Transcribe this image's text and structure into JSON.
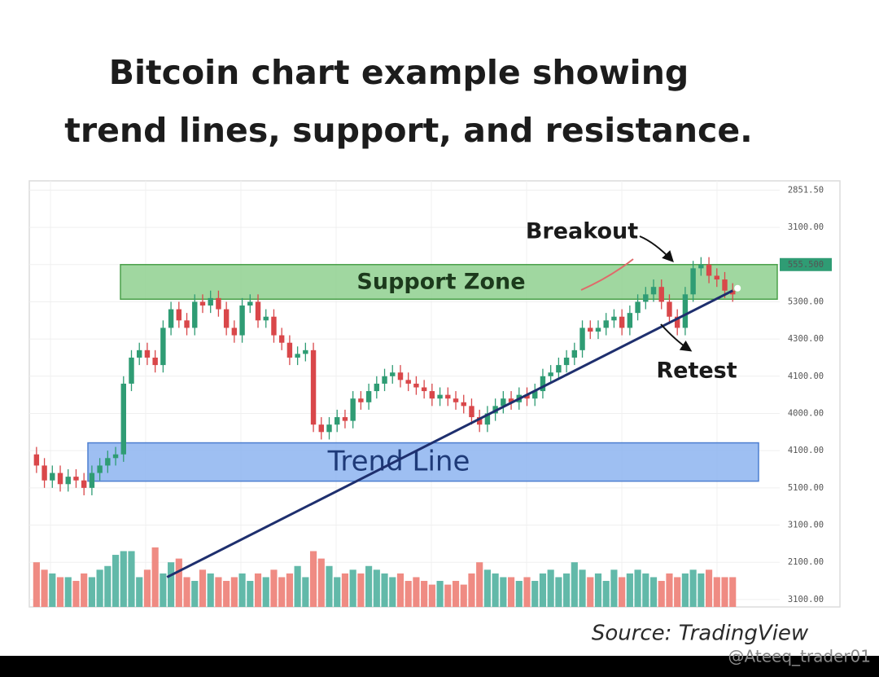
{
  "chart_data": {
    "type": "candlestick",
    "title": [
      "Bitcoin chart example showing",
      "trend lines, support, and resistance."
    ],
    "source": "Source: TradingView",
    "ylim": [
      -0.2,
      11.25
    ],
    "yticks": [
      {
        "value": 11,
        "label": "2851.50"
      },
      {
        "value": 10,
        "label": "3100.00"
      },
      {
        "value": 9,
        "label": "555.500"
      },
      {
        "value": 8,
        "label": "5300.00"
      },
      {
        "value": 7,
        "label": "4300.00"
      },
      {
        "value": 6,
        "label": "4100.00"
      },
      {
        "value": 5,
        "label": "4000.00"
      },
      {
        "value": 4,
        "label": "4100.00"
      },
      {
        "value": 3,
        "label": "5100.00"
      },
      {
        "value": 2,
        "label": "3100.00"
      },
      {
        "value": 1,
        "label": "2100.00"
      },
      {
        "value": 0,
        "label": "3100.00"
      }
    ],
    "highlight_tick": 2,
    "grid": true,
    "up_color": "#2f9c74",
    "down_color": "#d9474a",
    "volume_up_color": "#62b9a9",
    "volume_down_color": "#ef8b83",
    "open": [
      3.9,
      3.6,
      3.2,
      3.4,
      3.1,
      3.3,
      3.2,
      3.0,
      3.4,
      3.6,
      3.8,
      3.9,
      5.8,
      6.5,
      6.7,
      6.5,
      6.3,
      7.3,
      7.8,
      7.5,
      7.3,
      8.0,
      7.9,
      8.1,
      7.8,
      7.3,
      7.1,
      7.9,
      8.0,
      7.5,
      7.6,
      7.1,
      6.9,
      6.5,
      6.6,
      6.7,
      4.7,
      4.5,
      4.7,
      4.9,
      4.8,
      5.4,
      5.3,
      5.6,
      5.8,
      6.0,
      6.1,
      5.9,
      5.8,
      5.7,
      5.6,
      5.4,
      5.5,
      5.4,
      5.3,
      5.2,
      4.9,
      4.7,
      5.0,
      5.2,
      5.4,
      5.3,
      5.5,
      5.4,
      5.6,
      6.0,
      6.1,
      6.3,
      6.5,
      6.7,
      7.3,
      7.2,
      7.3,
      7.5,
      7.6,
      7.3,
      7.7,
      8.0,
      8.2,
      8.4,
      8.0,
      7.6,
      7.3,
      8.2,
      8.9,
      9.0,
      8.7,
      8.6,
      8.3
    ],
    "high": [
      4.1,
      3.8,
      3.6,
      3.6,
      3.5,
      3.5,
      3.4,
      3.6,
      3.8,
      4.0,
      4.1,
      6.0,
      6.7,
      6.9,
      6.9,
      6.7,
      7.5,
      8.0,
      8.0,
      7.7,
      8.2,
      8.2,
      8.3,
      8.3,
      8.0,
      7.5,
      8.1,
      8.2,
      8.2,
      7.8,
      7.8,
      7.3,
      7.1,
      6.8,
      6.9,
      6.9,
      4.9,
      4.9,
      5.1,
      5.1,
      5.6,
      5.6,
      5.8,
      6.0,
      6.2,
      6.3,
      6.3,
      6.1,
      6.0,
      5.9,
      5.8,
      5.7,
      5.7,
      5.6,
      5.5,
      5.4,
      5.1,
      5.2,
      5.4,
      5.6,
      5.6,
      5.7,
      5.7,
      5.8,
      6.2,
      6.3,
      6.5,
      6.7,
      6.9,
      7.5,
      7.5,
      7.5,
      7.7,
      7.8,
      7.8,
      7.9,
      8.2,
      8.4,
      8.6,
      8.6,
      8.2,
      7.8,
      8.4,
      9.1,
      9.2,
      9.2,
      8.9,
      8.8,
      8.5
    ],
    "low": [
      3.4,
      3.0,
      3.0,
      2.9,
      2.9,
      3.0,
      2.8,
      2.8,
      3.2,
      3.4,
      3.6,
      3.7,
      5.6,
      6.3,
      6.3,
      6.1,
      6.1,
      7.1,
      7.3,
      7.1,
      7.1,
      7.7,
      7.7,
      7.6,
      7.1,
      6.9,
      6.9,
      7.7,
      7.3,
      7.3,
      6.9,
      6.7,
      6.3,
      6.3,
      6.4,
      4.5,
      4.3,
      4.3,
      4.5,
      4.6,
      4.6,
      5.1,
      5.1,
      5.4,
      5.6,
      5.8,
      5.7,
      5.6,
      5.5,
      5.4,
      5.2,
      5.2,
      5.2,
      5.1,
      5.0,
      4.7,
      4.5,
      4.5,
      4.8,
      5.0,
      5.1,
      5.1,
      5.2,
      5.2,
      5.4,
      5.8,
      5.9,
      6.1,
      6.3,
      6.5,
      7.0,
      7.0,
      7.1,
      7.3,
      7.1,
      7.1,
      7.5,
      7.8,
      8.0,
      7.8,
      7.4,
      7.1,
      7.1,
      8.0,
      8.7,
      8.5,
      8.4,
      8.1,
      8.0
    ],
    "close": [
      3.6,
      3.2,
      3.4,
      3.1,
      3.3,
      3.2,
      3.0,
      3.4,
      3.6,
      3.8,
      3.9,
      5.8,
      6.5,
      6.7,
      6.5,
      6.3,
      7.3,
      7.8,
      7.5,
      7.3,
      8.0,
      7.9,
      8.1,
      7.8,
      7.3,
      7.1,
      7.9,
      8.0,
      7.5,
      7.6,
      7.1,
      6.9,
      6.5,
      6.6,
      6.7,
      4.7,
      4.5,
      4.7,
      4.9,
      4.8,
      5.4,
      5.3,
      5.6,
      5.8,
      6.0,
      6.1,
      5.9,
      5.8,
      5.7,
      5.6,
      5.4,
      5.5,
      5.4,
      5.3,
      5.2,
      4.9,
      4.7,
      5.0,
      5.2,
      5.4,
      5.3,
      5.5,
      5.4,
      5.6,
      6.0,
      6.1,
      6.3,
      6.5,
      6.7,
      7.3,
      7.2,
      7.3,
      7.5,
      7.6,
      7.3,
      7.7,
      8.0,
      8.2,
      8.4,
      8.0,
      7.6,
      7.3,
      8.2,
      8.9,
      9.0,
      8.7,
      8.6,
      8.3,
      8.2
    ],
    "volume": [
      1.0,
      0.8,
      0.7,
      0.6,
      0.6,
      0.5,
      0.7,
      0.6,
      0.8,
      0.9,
      1.2,
      1.3,
      1.3,
      0.6,
      0.8,
      1.4,
      0.7,
      1.0,
      1.1,
      0.6,
      0.5,
      0.8,
      0.7,
      0.6,
      0.5,
      0.6,
      0.7,
      0.5,
      0.7,
      0.6,
      0.8,
      0.6,
      0.7,
      0.9,
      0.6,
      1.3,
      1.1,
      0.9,
      0.6,
      0.7,
      0.8,
      0.7,
      0.9,
      0.8,
      0.7,
      0.6,
      0.7,
      0.5,
      0.6,
      0.5,
      0.4,
      0.5,
      0.4,
      0.5,
      0.4,
      0.7,
      1.0,
      0.8,
      0.7,
      0.6,
      0.6,
      0.5,
      0.6,
      0.5,
      0.7,
      0.8,
      0.6,
      0.7,
      1.0,
      0.8,
      0.6,
      0.7,
      0.5,
      0.8,
      0.6,
      0.7,
      0.8,
      0.7,
      0.6,
      0.5,
      0.7,
      0.6,
      0.7,
      0.8,
      0.7,
      0.8,
      0.6,
      0.6,
      0.6
    ],
    "zones": [
      {
        "label": "Support Zone",
        "range": [
          8.07,
          9.0
        ],
        "color": "#8fd08f"
      },
      {
        "label": "Trend Line",
        "range": [
          3.18,
          4.21
        ],
        "color": "#8db4f0"
      }
    ],
    "trend_line": {
      "start": [
        16.5,
        0.6
      ],
      "end": [
        88,
        8.3
      ],
      "color": "#1e2f6e"
    },
    "annotations": [
      "Breakout",
      "Retest"
    ]
  },
  "watermark": "@Ateeq_trader01"
}
